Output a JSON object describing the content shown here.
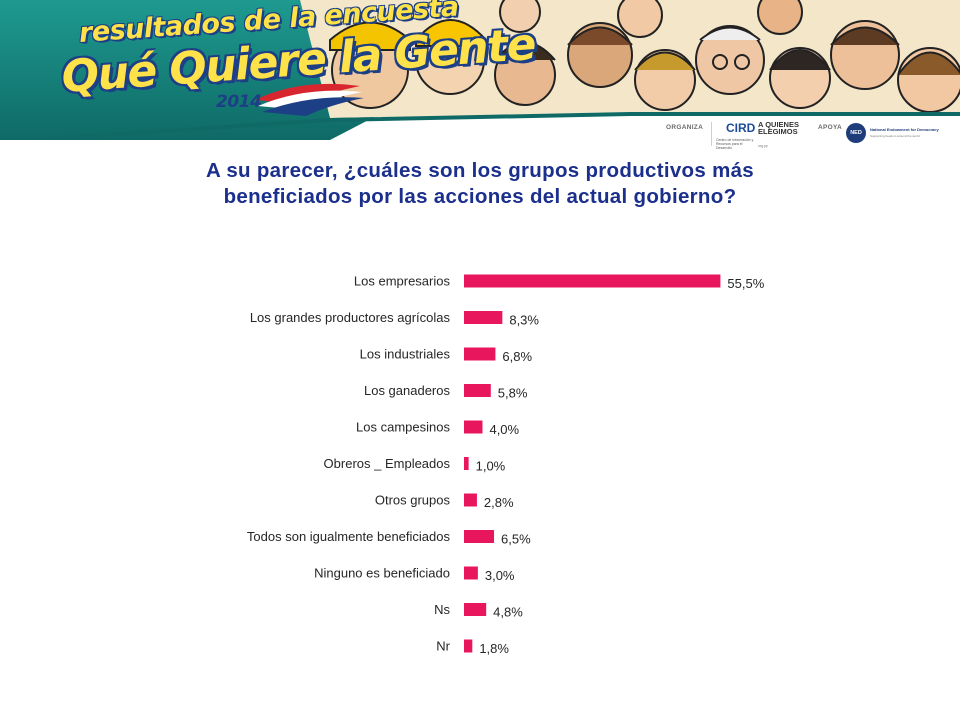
{
  "banner": {
    "title_small": "resultados de la encuesta",
    "title_big": "Qué Quiere la Gente",
    "year": "2014",
    "colors": {
      "teal": "#16807a",
      "yellow": "#ffe14a",
      "navy": "#1c3f86",
      "red": "#d8262e"
    }
  },
  "sponsors": {
    "organiza_label": "ORGANIZA",
    "cird_name": "CIRD",
    "cird_subtitle": "Centro de Información y Recursos para el Desarrollo",
    "aqe_name": "A QUIENES\nELEGIMOS",
    "aqe_suffix": "org.py",
    "apoya_label": "APOYA",
    "ned_logo": "NED",
    "ned_name": "National Endowment for Democracy",
    "ned_subtitle": "Supporting freedom around the world"
  },
  "question": {
    "text": "A su parecer,  ¿cuáles son los grupos productivos más\nbeneficiados por las acciones del actual gobierno?"
  },
  "chart_data": {
    "type": "bar",
    "orientation": "horizontal",
    "title": "",
    "xlabel": "",
    "ylabel": "",
    "xlim": [
      0,
      60
    ],
    "grid": false,
    "legend": "none",
    "bar_color": "#e8175d",
    "categories": [
      "Los empresarios",
      "Los grandes productores agrícolas",
      "Los industriales",
      "Los ganaderos",
      "Los campesinos",
      "Obreros _ Empleados",
      "Otros grupos",
      "Todos son igualmente beneficiados",
      "Ninguno es beneficiado",
      "Ns",
      "Nr"
    ],
    "values": [
      55.5,
      8.3,
      6.8,
      5.8,
      4.0,
      1.0,
      2.8,
      6.5,
      3.0,
      4.8,
      1.8
    ],
    "data_labels": [
      "55,5%",
      "8,3%",
      "6,8%",
      "5,8%",
      "4,0%",
      "1,0%",
      "2,8%",
      "6,5%",
      "3,0%",
      "4,8%",
      "1,8%"
    ]
  }
}
